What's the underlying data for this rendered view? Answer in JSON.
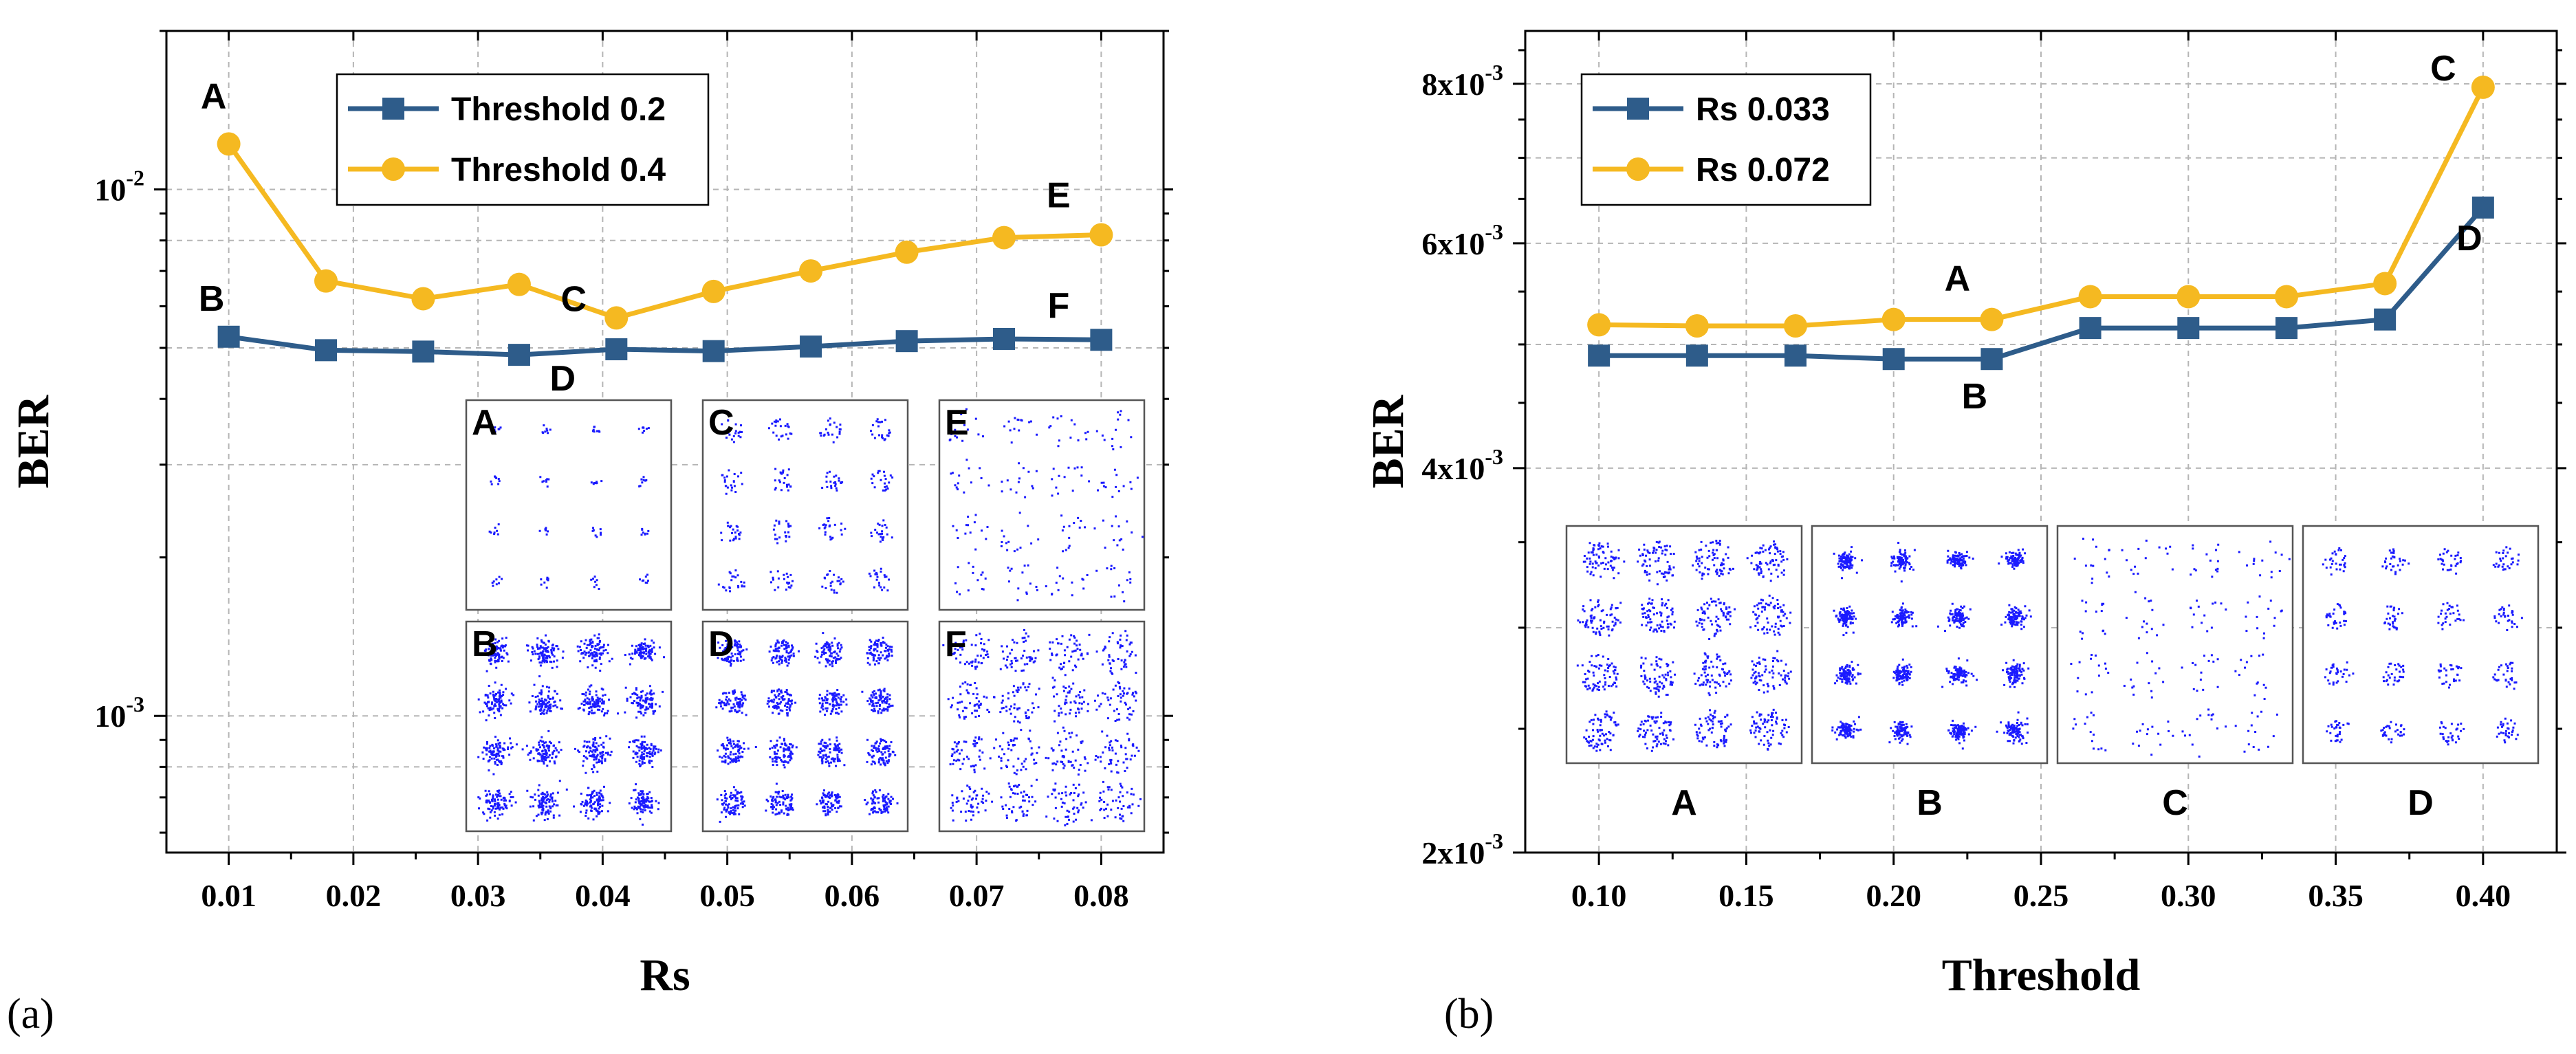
{
  "chart_data": [
    {
      "type": "line",
      "panel_label": "(a)",
      "xlabel": "Rs",
      "ylabel": "BER",
      "yscale": "log",
      "xlim": [
        0.005,
        0.085
      ],
      "ylim": [
        0.00055,
        0.02
      ],
      "x_ticks": [
        0.01,
        0.02,
        0.03,
        0.04,
        0.05,
        0.06,
        0.07,
        0.08
      ],
      "x_tick_labels": [
        "0.01",
        "0.02",
        "0.03",
        "0.04",
        "0.05",
        "0.06",
        "0.07",
        "0.08"
      ],
      "y_ticks": [
        0.001,
        0.01
      ],
      "y_tick_labels": [
        {
          "base": "10",
          "exp": "-3"
        },
        {
          "base": "10",
          "exp": "-2"
        }
      ],
      "x": [
        0.01,
        0.0178,
        0.0256,
        0.0333,
        0.0411,
        0.0489,
        0.0567,
        0.0644,
        0.0722,
        0.08
      ],
      "series": [
        {
          "name": "Threshold 0.2",
          "color": "#2e5c8a",
          "marker": "square",
          "values": [
            0.00525,
            0.00495,
            0.00492,
            0.00485,
            0.00497,
            0.00493,
            0.00503,
            0.00515,
            0.0052,
            0.00518
          ]
        },
        {
          "name": "Threshold 0.4",
          "color": "#f5b921",
          "marker": "circle",
          "values": [
            0.0122,
            0.0067,
            0.0062,
            0.0066,
            0.0057,
            0.0064,
            0.007,
            0.0076,
            0.0081,
            0.0082
          ]
        }
      ],
      "point_labels": [
        {
          "text": "A",
          "series": 1,
          "index": 0
        },
        {
          "text": "B",
          "series": 0,
          "index": 0
        },
        {
          "text": "C",
          "series": 1,
          "index": 4
        },
        {
          "text": "D",
          "series": 0,
          "index": 4
        },
        {
          "text": "E",
          "series": 1,
          "index": 9
        },
        {
          "text": "F",
          "series": 0,
          "index": 9
        }
      ],
      "legend": "top-left",
      "grid": true,
      "insets": [
        "A",
        "C",
        "E",
        "B",
        "D",
        "F"
      ]
    },
    {
      "type": "line",
      "panel_label": "(b)",
      "xlabel": "Threshold",
      "ylabel": "BER",
      "yscale": "log",
      "xlim": [
        0.075,
        0.425
      ],
      "ylim": [
        0.002,
        0.0088
      ],
      "x_ticks": [
        0.1,
        0.15,
        0.2,
        0.25,
        0.3,
        0.35,
        0.4
      ],
      "x_tick_labels": [
        "0.10",
        "0.15",
        "0.20",
        "0.25",
        "0.30",
        "0.35",
        "0.40"
      ],
      "y_ticks": [
        0.002,
        0.004,
        0.006,
        0.008
      ],
      "y_tick_labels": [
        {
          "base": "2x10",
          "exp": "-3"
        },
        {
          "base": "4x10",
          "exp": "-3"
        },
        {
          "base": "6x10",
          "exp": "-3"
        },
        {
          "base": "8x10",
          "exp": "-3"
        }
      ],
      "x": [
        0.1,
        0.1333,
        0.1667,
        0.2,
        0.2333,
        0.2667,
        0.3,
        0.3333,
        0.3667,
        0.4
      ],
      "series": [
        {
          "name": "Rs 0.033",
          "color": "#2e5c8a",
          "marker": "square",
          "values": [
            0.0049,
            0.0049,
            0.0049,
            0.00487,
            0.00487,
            0.00515,
            0.00515,
            0.00515,
            0.00523,
            0.0064
          ]
        },
        {
          "name": "Rs 0.072",
          "color": "#f5b921",
          "marker": "circle",
          "values": [
            0.00518,
            0.00517,
            0.00517,
            0.00523,
            0.00523,
            0.00545,
            0.00545,
            0.00545,
            0.00558,
            0.00795
          ]
        }
      ],
      "point_labels": [
        {
          "text": "A",
          "series": 1,
          "index": 4
        },
        {
          "text": "B",
          "series": 0,
          "index": 4
        },
        {
          "text": "C",
          "series": 1,
          "index": 9
        },
        {
          "text": "D",
          "series": 0,
          "index": 9
        }
      ],
      "legend": "top-left",
      "grid": true,
      "insets": [
        "A",
        "B",
        "C",
        "D"
      ]
    }
  ]
}
